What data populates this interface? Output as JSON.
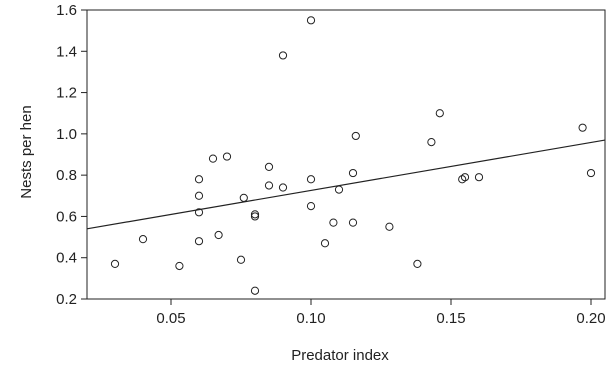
{
  "chart_data": {
    "type": "scatter",
    "title": "",
    "xlabel": "Predator index",
    "ylabel": "Nests per hen",
    "xlim": [
      0.02,
      0.205
    ],
    "ylim": [
      0.2,
      1.6
    ],
    "xticks": [
      0.05,
      0.1,
      0.15,
      0.2
    ],
    "xtick_labels": [
      "0.05",
      "0.10",
      "0.15",
      "0.20"
    ],
    "yticks": [
      0.2,
      0.4,
      0.6,
      0.8,
      1.0,
      1.2,
      1.4,
      1.6
    ],
    "ytick_labels": [
      "0.2",
      "0.4",
      "0.6",
      "0.8",
      "1.0",
      "1.2",
      "1.4",
      "1.6"
    ],
    "grid": false,
    "legend": "none",
    "marker": "open-circle",
    "colors": {
      "ink": "#222222",
      "background": "#ffffff"
    },
    "points": [
      {
        "x": 0.03,
        "y": 0.37
      },
      {
        "x": 0.04,
        "y": 0.49
      },
      {
        "x": 0.053,
        "y": 0.36
      },
      {
        "x": 0.06,
        "y": 0.78
      },
      {
        "x": 0.06,
        "y": 0.7
      },
      {
        "x": 0.06,
        "y": 0.62
      },
      {
        "x": 0.06,
        "y": 0.48
      },
      {
        "x": 0.065,
        "y": 0.88
      },
      {
        "x": 0.067,
        "y": 0.51
      },
      {
        "x": 0.07,
        "y": 0.89
      },
      {
        "x": 0.075,
        "y": 0.39
      },
      {
        "x": 0.076,
        "y": 0.69
      },
      {
        "x": 0.08,
        "y": 0.61
      },
      {
        "x": 0.08,
        "y": 0.6
      },
      {
        "x": 0.08,
        "y": 0.24
      },
      {
        "x": 0.085,
        "y": 0.84
      },
      {
        "x": 0.085,
        "y": 0.75
      },
      {
        "x": 0.09,
        "y": 1.38
      },
      {
        "x": 0.09,
        "y": 0.74
      },
      {
        "x": 0.1,
        "y": 1.55
      },
      {
        "x": 0.1,
        "y": 0.78
      },
      {
        "x": 0.1,
        "y": 0.65
      },
      {
        "x": 0.105,
        "y": 0.47
      },
      {
        "x": 0.108,
        "y": 0.57
      },
      {
        "x": 0.11,
        "y": 0.73
      },
      {
        "x": 0.115,
        "y": 0.81
      },
      {
        "x": 0.115,
        "y": 0.57
      },
      {
        "x": 0.116,
        "y": 0.99
      },
      {
        "x": 0.128,
        "y": 0.55
      },
      {
        "x": 0.138,
        "y": 0.37
      },
      {
        "x": 0.143,
        "y": 0.96
      },
      {
        "x": 0.146,
        "y": 1.1
      },
      {
        "x": 0.154,
        "y": 0.78
      },
      {
        "x": 0.155,
        "y": 0.79
      },
      {
        "x": 0.16,
        "y": 0.79
      },
      {
        "x": 0.197,
        "y": 1.03
      },
      {
        "x": 0.2,
        "y": 0.81
      }
    ],
    "trendline": {
      "type": "linear",
      "start": {
        "x": 0.02,
        "y": 0.54
      },
      "end": {
        "x": 0.205,
        "y": 0.97
      }
    }
  }
}
